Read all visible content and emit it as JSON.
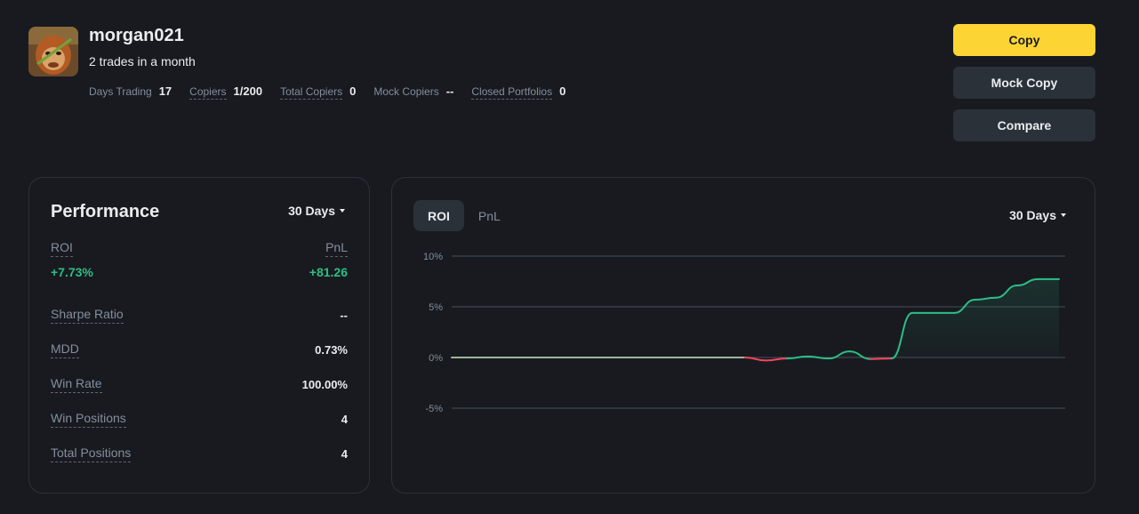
{
  "profile": {
    "username": "morgan021",
    "subtitle": "2 trades in a month",
    "stats": [
      {
        "label": "Days Trading",
        "value": "17"
      },
      {
        "label": "Copiers",
        "value": "1/200"
      },
      {
        "label": "Total Copiers",
        "value": "0"
      },
      {
        "label": "Mock Copiers",
        "value": "--"
      },
      {
        "label": "Closed Portfolios",
        "value": "0"
      }
    ]
  },
  "actions": {
    "copy": "Copy",
    "mock_copy": "Mock Copy",
    "compare": "Compare"
  },
  "performance": {
    "title": "Performance",
    "period": "30 Days",
    "roi_label": "ROI",
    "roi_value": "+7.73%",
    "pnl_label": "PnL",
    "pnl_value": "+81.26",
    "metrics": [
      {
        "label": "Sharpe Ratio",
        "value": "--"
      },
      {
        "label": "MDD",
        "value": "0.73%"
      },
      {
        "label": "Win Rate",
        "value": "100.00%"
      },
      {
        "label": "Win Positions",
        "value": "4"
      },
      {
        "label": "Total Positions",
        "value": "4"
      }
    ]
  },
  "chart_panel": {
    "tabs": [
      "ROI",
      "PnL"
    ],
    "active_tab": "ROI",
    "period": "30 Days"
  },
  "colors": {
    "accent": "#fcd535",
    "positive": "#2ebd85",
    "negative": "#f6465d",
    "background": "#181a20",
    "panel_border": "#2b3139"
  },
  "chart_data": {
    "type": "line",
    "title": "",
    "xlabel": "",
    "ylabel": "",
    "ylim": [
      -5,
      10
    ],
    "yticks": [
      "10%",
      "5%",
      "0%",
      "-5%"
    ],
    "ytick_values": [
      10,
      5,
      0,
      -5
    ],
    "grid": true,
    "series": [
      {
        "x": [
          0,
          1,
          2,
          3,
          4,
          5,
          6,
          7,
          8,
          9,
          10,
          11,
          12,
          13,
          14,
          15,
          16,
          17,
          18,
          19,
          20,
          21,
          22,
          23,
          24,
          25,
          26,
          27,
          28,
          29
        ],
        "values": [
          0,
          0,
          0,
          0,
          0,
          0,
          0,
          0,
          0,
          0,
          0,
          0,
          0,
          0,
          0,
          -0.3,
          -0.1,
          0.1,
          -0.1,
          0.6,
          -0.15,
          -0.1,
          4.4,
          4.4,
          4.4,
          5.7,
          5.9,
          7.1,
          7.73,
          7.73
        ]
      }
    ]
  }
}
